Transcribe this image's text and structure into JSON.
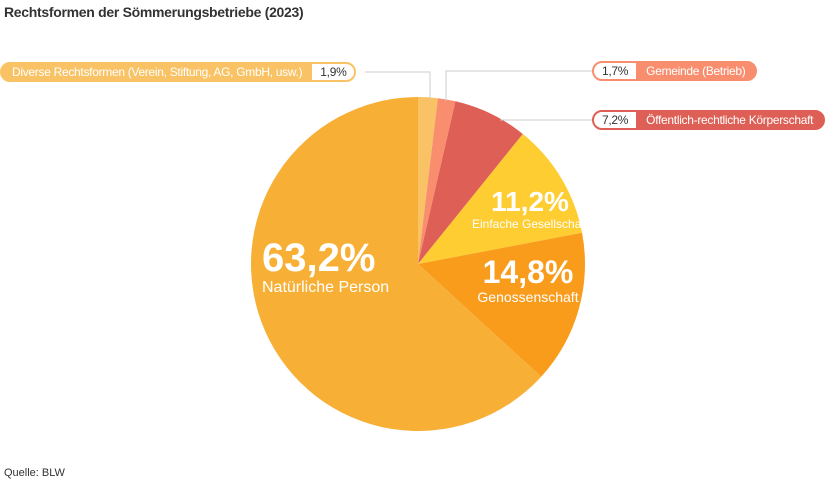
{
  "title": "Rechtsformen der Sömmerungsbetriebe (2023)",
  "source": "Quelle: BLW",
  "chart_data": {
    "type": "pie",
    "start": "top",
    "direction": "clockwise",
    "slices": [
      {
        "label": "Diverse Rechtsformen (Verein, Stiftung, AG, GmbH, usw.)",
        "value": 1.9,
        "value_label": "1,9%",
        "color": "#f9c264"
      },
      {
        "label": "Gemeinde (Betrieb)",
        "value": 1.7,
        "value_label": "1,7%",
        "color": "#f98e6e"
      },
      {
        "label": "Öffentlich-rechtliche Körperschaft",
        "value": 7.2,
        "value_label": "7,2%",
        "color": "#de5f55"
      },
      {
        "label": "Einfache Gesellschaft",
        "value": 11.2,
        "value_label": "11,2%",
        "color": "#fecd32"
      },
      {
        "label": "Genossenschaft",
        "value": 14.8,
        "value_label": "14,8%",
        "color": "#f99c1c"
      },
      {
        "label": "Natürliche Person",
        "value": 63.2,
        "value_label": "63,2%",
        "color": "#f7b035"
      }
    ]
  }
}
